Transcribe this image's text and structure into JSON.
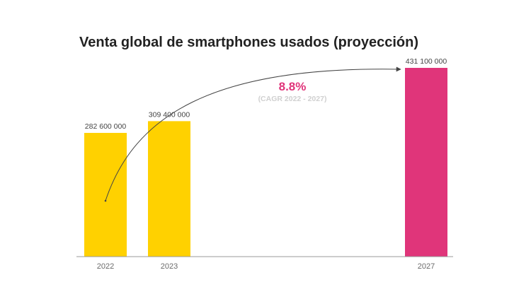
{
  "chart_data": {
    "type": "bar",
    "title": "Venta global de smartphones usados (proyección)",
    "categories": [
      "2022",
      "2023",
      "2027"
    ],
    "values": [
      282600000,
      309400000,
      431100000
    ],
    "value_labels": [
      "282 600 000",
      "309 400 000",
      "431 100 000"
    ],
    "bar_colors": [
      "#FFD100",
      "#FFD100",
      "#E0357A"
    ],
    "ylim": [
      0,
      431100000
    ],
    "xlabel": "",
    "ylabel": "",
    "grid": false,
    "annotation": {
      "value": "8.8%",
      "caption": "(CAGR 2022 - 2027)",
      "value_color": "#E0357A",
      "from_category": "2022",
      "to_category": "2027"
    }
  }
}
